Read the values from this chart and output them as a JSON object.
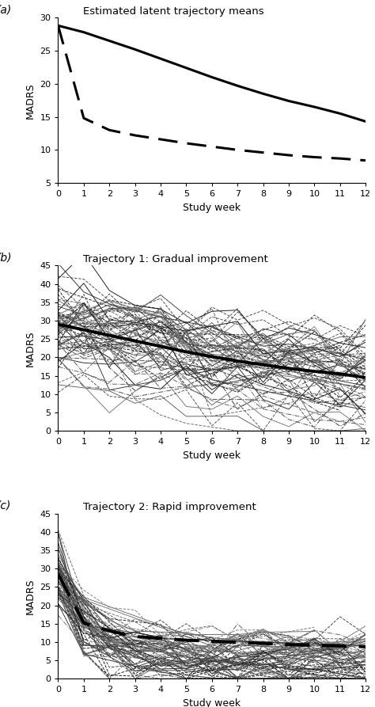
{
  "panel_a": {
    "title": "Estimated latent trajectory means",
    "label": "(a)",
    "solid_line": [
      28.8,
      27.8,
      26.5,
      25.2,
      23.8,
      22.4,
      21.0,
      19.7,
      18.5,
      17.4,
      16.5,
      15.5,
      14.3
    ],
    "dashed_line": [
      28.8,
      14.8,
      13.0,
      12.2,
      11.6,
      11.0,
      10.5,
      10.0,
      9.6,
      9.2,
      8.9,
      8.7,
      8.4
    ],
    "ylim": [
      5,
      30
    ],
    "yticks": [
      5,
      10,
      15,
      20,
      25,
      30
    ],
    "xlim": [
      0,
      12
    ],
    "xticks": [
      0,
      1,
      2,
      3,
      4,
      5,
      6,
      7,
      8,
      9,
      10,
      11,
      12
    ]
  },
  "panel_b": {
    "title": "Trajectory 1: Gradual improvement",
    "label": "(b)",
    "mean_line": [
      29.0,
      27.5,
      26.0,
      24.5,
      23.0,
      21.5,
      20.2,
      19.0,
      18.0,
      17.0,
      16.2,
      15.5,
      14.5
    ],
    "ylim": [
      0,
      45
    ],
    "yticks": [
      0,
      5,
      10,
      15,
      20,
      25,
      30,
      35,
      40,
      45
    ],
    "xlim": [
      0,
      12
    ],
    "xticks": [
      0,
      1,
      2,
      3,
      4,
      5,
      6,
      7,
      8,
      9,
      10,
      11,
      12
    ],
    "n_subjects": 70,
    "seed": 12
  },
  "panel_c": {
    "title": "Trajectory 2: Rapid improvement",
    "label": "(c)",
    "mean_line": [
      28.5,
      15.2,
      13.0,
      11.5,
      11.0,
      10.5,
      10.2,
      9.9,
      9.6,
      9.3,
      9.1,
      8.9,
      8.7
    ],
    "ylim": [
      0,
      45
    ],
    "yticks": [
      0,
      5,
      10,
      15,
      20,
      25,
      30,
      35,
      40,
      45
    ],
    "xlim": [
      0,
      12
    ],
    "xticks": [
      0,
      1,
      2,
      3,
      4,
      5,
      6,
      7,
      8,
      9,
      10,
      11,
      12
    ],
    "n_subjects": 70,
    "seed": 77
  },
  "xlabel": "Study week",
  "ylabel": "MADRS",
  "bg_color": "#ffffff"
}
